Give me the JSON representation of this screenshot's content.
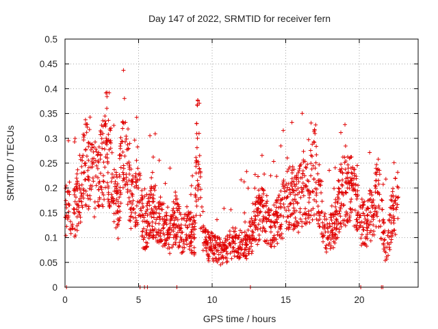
{
  "chart_data": {
    "type": "scatter",
    "title": "Day 147 of 2022, SRMTID for receiver fern",
    "xlabel": "GPS time / hours",
    "ylabel": "SRMTID / TECUs",
    "xlim": [
      0,
      24
    ],
    "ylim": [
      0,
      0.5
    ],
    "xticks": [
      "0",
      "5",
      "10",
      "15",
      "20"
    ],
    "yticks": [
      "0",
      "0.05",
      "0.1",
      "0.15",
      "0.2",
      "0.25",
      "0.3",
      "0.35",
      "0.4",
      "0.45",
      "0.5"
    ],
    "grid": true,
    "marker": "+",
    "color": "#e00000",
    "series_summary": {
      "x": [
        0.1,
        0.6,
        1.0,
        1.4,
        1.9,
        2.3,
        2.8,
        3.2,
        3.6,
        4.0,
        4.5,
        5.0,
        5.4,
        5.8,
        6.2,
        6.7,
        7.1,
        7.5,
        7.9,
        8.3,
        8.8,
        9.0,
        9.3,
        9.8,
        10.2,
        10.6,
        11.0,
        11.4,
        11.9,
        12.3,
        12.8,
        13.2,
        13.6,
        14.0,
        14.5,
        14.9,
        15.3,
        15.8,
        16.2,
        16.6,
        17.0,
        17.5,
        17.9,
        18.3,
        18.8,
        19.2,
        19.6,
        20.0,
        20.5,
        20.9,
        21.3,
        21.8,
        22.2,
        22.6
      ],
      "y": [
        0.16,
        0.15,
        0.2,
        0.25,
        0.22,
        0.21,
        0.3,
        0.22,
        0.15,
        0.33,
        0.16,
        0.2,
        0.1,
        0.15,
        0.15,
        0.12,
        0.1,
        0.14,
        0.11,
        0.12,
        0.1,
        0.3,
        0.12,
        0.08,
        0.08,
        0.07,
        0.08,
        0.09,
        0.09,
        0.08,
        0.11,
        0.15,
        0.14,
        0.12,
        0.14,
        0.16,
        0.19,
        0.17,
        0.2,
        0.18,
        0.24,
        0.13,
        0.1,
        0.12,
        0.19,
        0.2,
        0.2,
        0.14,
        0.12,
        0.16,
        0.19,
        0.07,
        0.14,
        0.18
      ]
    },
    "zero_points_x": [
      0.1,
      5.1,
      5.4,
      5.6,
      7.6,
      12.6,
      20.1,
      21.5,
      21.6
    ]
  }
}
